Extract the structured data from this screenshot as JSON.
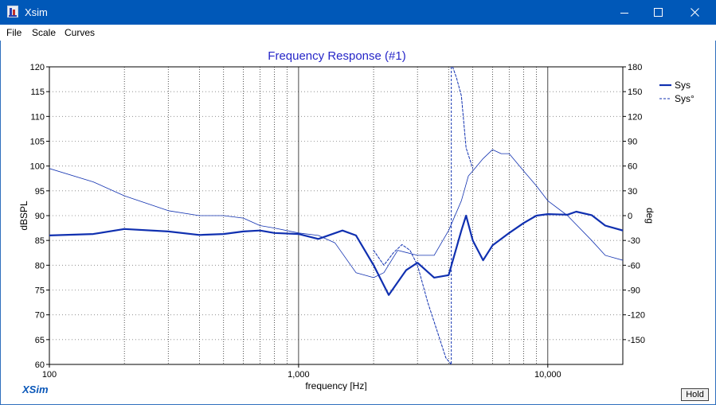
{
  "window": {
    "title": "Xsim",
    "controls": {
      "minimize": "minimize-icon",
      "maximize": "maximize-icon",
      "close": "close-icon"
    }
  },
  "menu": {
    "items": [
      "File",
      "Scale",
      "Curves"
    ]
  },
  "footer": {
    "brand": "XSim",
    "hold_label": "Hold"
  },
  "colors": {
    "titlebar": "#0058b8",
    "curve": "#1030b0",
    "title_text": "#2626c8",
    "brand": "#0a57b8"
  },
  "chart_data": {
    "type": "line",
    "title": "Frequency Response (#1)",
    "xlabel": "frequency [Hz]",
    "ylabel": "dBSPL",
    "y2label": "deg",
    "xscale": "log",
    "xlim": [
      100,
      20000
    ],
    "ylim": [
      60,
      120
    ],
    "y2lim": [
      -180,
      180
    ],
    "x_ticks": [
      {
        "value": 100,
        "label": "100"
      },
      {
        "value": 1000,
        "label": "1,000"
      },
      {
        "value": 10000,
        "label": "10,000"
      }
    ],
    "y_ticks": [
      60,
      65,
      70,
      75,
      80,
      85,
      90,
      95,
      100,
      105,
      110,
      115,
      120
    ],
    "y2_ticks": [
      -150,
      -120,
      -90,
      -60,
      -30,
      0,
      30,
      60,
      90,
      120,
      150,
      180
    ],
    "grid": true,
    "legend": {
      "position": "top-right",
      "entries": [
        "Sys",
        "Sys°"
      ]
    },
    "series": [
      {
        "name": "Sys",
        "axis": "left",
        "style": "solid-thick",
        "x": [
          100,
          150,
          200,
          300,
          400,
          500,
          600,
          700,
          800,
          1000,
          1200,
          1500,
          1700,
          2000,
          2300,
          2700,
          3000,
          3500,
          4000,
          4500,
          4700,
          5000,
          5500,
          6000,
          7000,
          8000,
          9000,
          10000,
          12000,
          13000,
          15000,
          17000,
          20000
        ],
        "y": [
          86,
          86.3,
          87.3,
          86.8,
          86.1,
          86.3,
          86.8,
          87,
          86.5,
          86.3,
          85.3,
          87,
          86,
          80,
          74,
          79,
          80.5,
          77.5,
          78,
          87,
          90,
          85,
          81,
          84,
          86.5,
          88.5,
          90,
          90.3,
          90.2,
          90.8,
          90.1,
          88,
          87
        ]
      },
      {
        "name": "Sys°",
        "axis": "right",
        "style": "dashed",
        "x": [
          2000,
          2200,
          2400,
          2600,
          2800,
          3000,
          3300,
          3600,
          3900,
          4100,
          4150,
          4300,
          4500,
          4700,
          5000
        ],
        "y": [
          -42,
          -60,
          -45,
          -35,
          -42,
          -60,
          -105,
          -140,
          -172,
          -180,
          180,
          167,
          145,
          82,
          57
        ]
      },
      {
        "name": "",
        "axis": "left",
        "style": "thin",
        "x": [
          100,
          150,
          200,
          300,
          400,
          500,
          600,
          700,
          800,
          1000,
          1200,
          1400,
          1700,
          2000,
          2200,
          2500,
          3000,
          3500,
          4000,
          4500,
          4800,
          5000,
          5500,
          6000,
          6500,
          7000,
          8000,
          9000,
          10000,
          12000,
          15000,
          17000,
          20000
        ],
        "y": [
          99.5,
          96.8,
          94,
          91,
          90,
          90,
          89.5,
          88,
          87.5,
          86.5,
          86,
          84.5,
          78.5,
          77.5,
          78.5,
          83,
          82,
          82,
          87,
          93,
          98,
          99,
          101.5,
          103.3,
          102.5,
          102.5,
          99,
          96,
          93,
          90,
          85,
          82,
          81
        ]
      }
    ]
  }
}
